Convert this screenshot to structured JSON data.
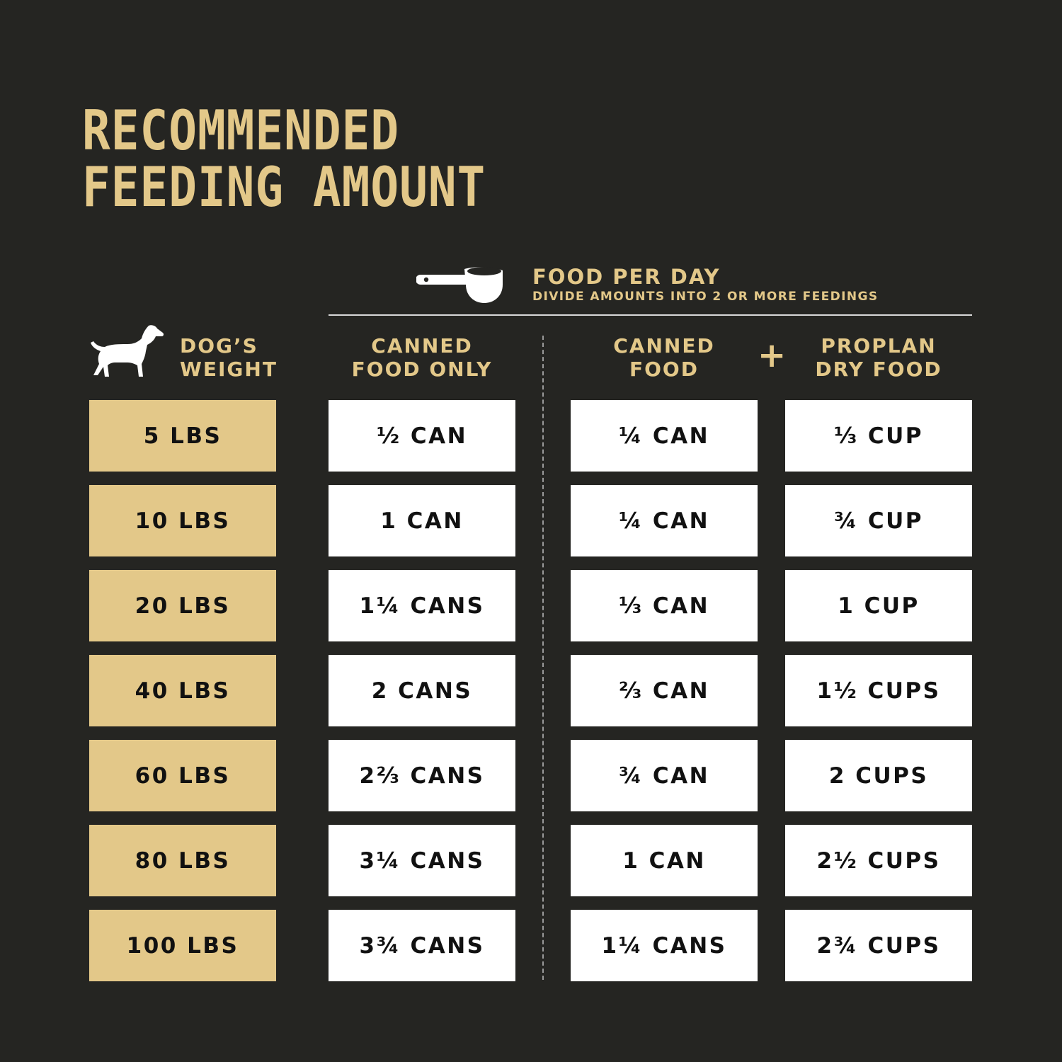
{
  "title": {
    "line1": "RECOMMENDED",
    "line2": "FEEDING AMOUNT"
  },
  "food_header": {
    "title": "FOOD PER DAY",
    "subtitle": "DIVIDE AMOUNTS INTO 2 OR MORE FEEDINGS",
    "icon": "measuring-cup-icon"
  },
  "columns": {
    "weight": {
      "line1": "DOG’S",
      "line2": "WEIGHT",
      "icon": "dog-icon"
    },
    "canned_only": {
      "line1": "CANNED",
      "line2": "FOOD ONLY"
    },
    "canned": {
      "line1": "CANNED",
      "line2": "FOOD"
    },
    "plus": "+",
    "dry": {
      "line1": "PROPLAN",
      "line2": "DRY FOOD"
    }
  },
  "colors": {
    "background": "#252522",
    "gold": "#E3C889",
    "cell": "#FFFFFF",
    "text": "#111111"
  },
  "chart_data": {
    "type": "table",
    "title": "RECOMMENDED FEEDING AMOUNT",
    "headers": [
      "DOG’S WEIGHT",
      "CANNED FOOD ONLY",
      "CANNED FOOD",
      "PROPLAN DRY FOOD"
    ],
    "rows": [
      {
        "weight": "5 LBS",
        "canned_only": "½ CAN",
        "canned": "¼ CAN",
        "dry": "⅓ CUP"
      },
      {
        "weight": "10 LBS",
        "canned_only": "1 CAN",
        "canned": "¼ CAN",
        "dry": "¾ CUP"
      },
      {
        "weight": "20 LBS",
        "canned_only": "1¼ CANS",
        "canned": "⅓ CAN",
        "dry": "1 CUP"
      },
      {
        "weight": "40 LBS",
        "canned_only": "2 CANS",
        "canned": "⅔ CAN",
        "dry": "1½ CUPS"
      },
      {
        "weight": "60 LBS",
        "canned_only": "2⅔ CANS",
        "canned": "¾ CAN",
        "dry": "2 CUPS"
      },
      {
        "weight": "80 LBS",
        "canned_only": "3¼ CANS",
        "canned": "1 CAN",
        "dry": "2½ CUPS"
      },
      {
        "weight": "100 LBS",
        "canned_only": "3¾ CANS",
        "canned": "1¼ CANS",
        "dry": "2¾ CUPS"
      }
    ]
  }
}
